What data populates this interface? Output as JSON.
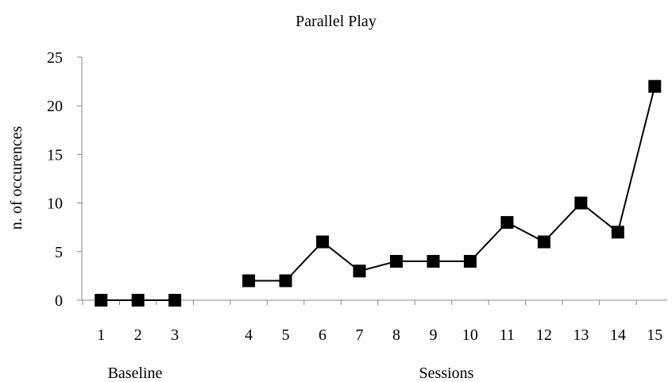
{
  "chart_data": {
    "type": "line",
    "title": "Parallel Play",
    "ylabel": "n. of occurences",
    "group_labels": [
      "Baseline",
      "Sessions"
    ],
    "ylim": [
      0,
      25
    ],
    "yticks": [
      0,
      5,
      10,
      15,
      20,
      25
    ],
    "grid": false,
    "legend": "none",
    "colors": {
      "line": "#000000",
      "marker": "#000000",
      "axis": "#858585"
    },
    "marker": "square",
    "phases": [
      {
        "name": "Baseline",
        "x": [
          "1",
          "2",
          "3"
        ],
        "y": [
          0,
          0,
          0
        ]
      },
      {
        "name": "Sessions",
        "x": [
          "4",
          "5",
          "6",
          "7",
          "8",
          "9",
          "10",
          "11",
          "12",
          "13",
          "14",
          "15"
        ],
        "y": [
          2,
          2,
          6,
          3,
          4,
          4,
          4,
          8,
          6,
          10,
          7,
          22
        ]
      }
    ]
  }
}
